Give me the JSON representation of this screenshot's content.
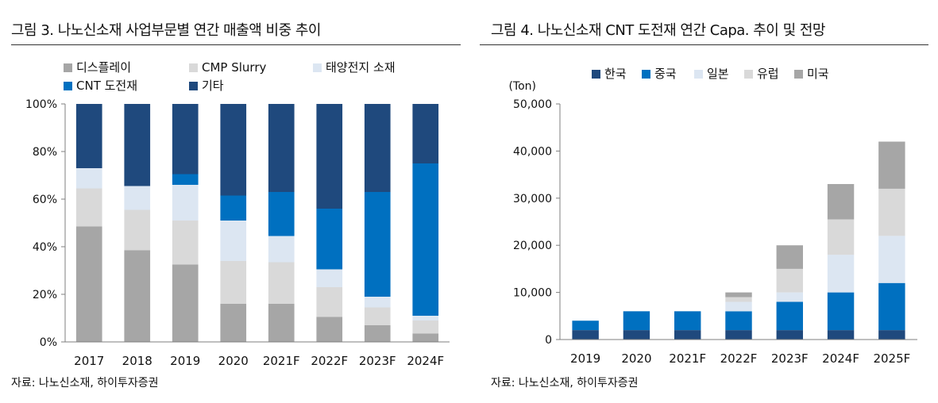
{
  "chart_data": [
    {
      "type": "bar",
      "stacked": true,
      "title": "그림 3. 나노신소재 사업부문별 연간 매출액 비중 추이",
      "source": "자료: 나노신소재, 하이투자증권",
      "ylim": [
        0,
        100
      ],
      "ytick_labels": [
        "0%",
        "20%",
        "40%",
        "60%",
        "80%",
        "100%"
      ],
      "categories": [
        "2017",
        "2018",
        "2019",
        "2020",
        "2021F",
        "2022F",
        "2023F",
        "2024F"
      ],
      "series": [
        {
          "name": "디스플레이",
          "color": "#a6a6a6",
          "values": [
            48.5,
            38.5,
            32.5,
            16.0,
            16.0,
            10.5,
            7.0,
            3.5
          ]
        },
        {
          "name": "CMP Slurry",
          "color": "#d9d9d9",
          "values": [
            16.0,
            17.0,
            18.5,
            18.0,
            17.5,
            12.5,
            7.5,
            5.5
          ]
        },
        {
          "name": "태양전지 소재",
          "color": "#dce6f2",
          "values": [
            8.5,
            10.0,
            15.0,
            17.0,
            11.0,
            7.5,
            4.5,
            2.0
          ]
        },
        {
          "name": "CNT 도전재",
          "color": "#0070c0",
          "values": [
            0.0,
            0.0,
            4.5,
            10.5,
            18.5,
            25.5,
            44.0,
            64.0
          ]
        },
        {
          "name": "기타",
          "color": "#1f497d",
          "values": [
            27.0,
            34.5,
            29.5,
            38.5,
            37.0,
            44.0,
            37.0,
            25.0
          ]
        }
      ]
    },
    {
      "type": "bar",
      "stacked": true,
      "title": "그림 4. 나노신소재 CNT 도전재 연간 Capa. 추이 및 전망",
      "source": "자료: 나노신소재, 하이투자증권",
      "unit_label": "(Ton)",
      "ylim": [
        0,
        50000
      ],
      "ytick_labels": [
        "0",
        "10,000",
        "20,000",
        "30,000",
        "40,000",
        "50,000"
      ],
      "categories": [
        "2019",
        "2020",
        "2021F",
        "2022F",
        "2023F",
        "2024F",
        "2025F"
      ],
      "series": [
        {
          "name": "한국",
          "color": "#1f497d",
          "values": [
            2000,
            2000,
            2000,
            2000,
            2000,
            2000,
            2000
          ]
        },
        {
          "name": "중국",
          "color": "#0070c0",
          "values": [
            2000,
            4000,
            4000,
            4000,
            6000,
            8000,
            10000
          ]
        },
        {
          "name": "일본",
          "color": "#dce6f2",
          "values": [
            0,
            0,
            0,
            2000,
            2000,
            8000,
            10000
          ]
        },
        {
          "name": "유럽",
          "color": "#d9d9d9",
          "values": [
            0,
            0,
            0,
            1000,
            5000,
            7500,
            10000
          ]
        },
        {
          "name": "미국",
          "color": "#a6a6a6",
          "values": [
            0,
            0,
            0,
            1000,
            5000,
            7500,
            10000
          ]
        }
      ]
    }
  ]
}
